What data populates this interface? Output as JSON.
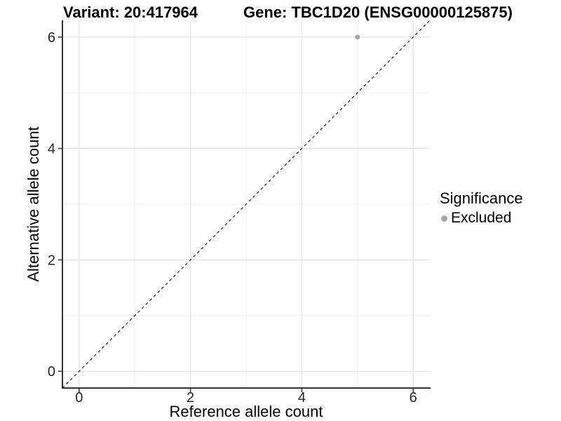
{
  "titles": {
    "variant": "Variant: 20:417964",
    "gene": "Gene: TBC1D20 (ENSG00000125875)"
  },
  "axes": {
    "x": {
      "label": "Reference allele count",
      "tick_labels": [
        "0",
        "2",
        "4",
        "6"
      ]
    },
    "y": {
      "label": "Alternative allele count",
      "tick_labels": [
        "0",
        "2",
        "4",
        "6"
      ]
    }
  },
  "legend": {
    "title": "Significance",
    "position": "right",
    "items": [
      {
        "label": "Excluded",
        "marker": "dot-icon",
        "color": "#a8a8a8"
      }
    ]
  },
  "chart_data": {
    "type": "scatter",
    "title": "Variant: 20:417964   Gene: TBC1D20 (ENSG00000125875)",
    "xlabel": "Reference allele count",
    "ylabel": "Alternative allele count",
    "xlim": [
      -0.3,
      6.3
    ],
    "ylim": [
      -0.3,
      6.3
    ],
    "x_breaks": [
      0,
      2,
      4,
      6
    ],
    "y_breaks": [
      0,
      2,
      4,
      6
    ],
    "x_minor_breaks": [
      1,
      3,
      5
    ],
    "y_minor_breaks": [
      1,
      3,
      5
    ],
    "grid": true,
    "series": [
      {
        "name": "Excluded",
        "points": [
          {
            "x": 5,
            "y": 6
          }
        ],
        "color": "#a8a8a8",
        "marker_radius": 3.5
      }
    ],
    "reference_line": {
      "kind": "abline",
      "slope": 1,
      "intercept": 0,
      "style": "dashed",
      "color": "#000000"
    },
    "style_colors": {
      "grid_major": "#e4e4e4",
      "grid_minor": "#efefef",
      "axis_line": "#333333",
      "tick_label": "#262626"
    }
  }
}
